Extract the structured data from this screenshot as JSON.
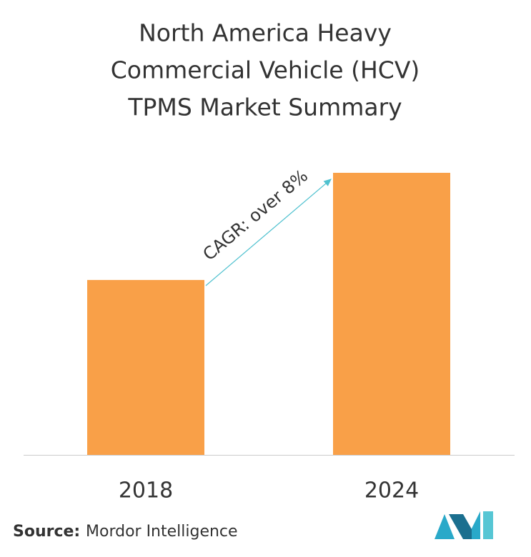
{
  "chart_data": {
    "type": "bar",
    "title": [
      "North America Heavy",
      "Commercial Vehicle (HCV)",
      "TPMS Market Summary"
    ],
    "categories": [
      "2018",
      "2024"
    ],
    "values": [
      62,
      100
    ],
    "color": "#f9a048",
    "ylim": [
      0,
      100
    ],
    "annotation": "CAGR: over 8%",
    "source_label": "Source:",
    "source": "Mordor Intelligence"
  }
}
